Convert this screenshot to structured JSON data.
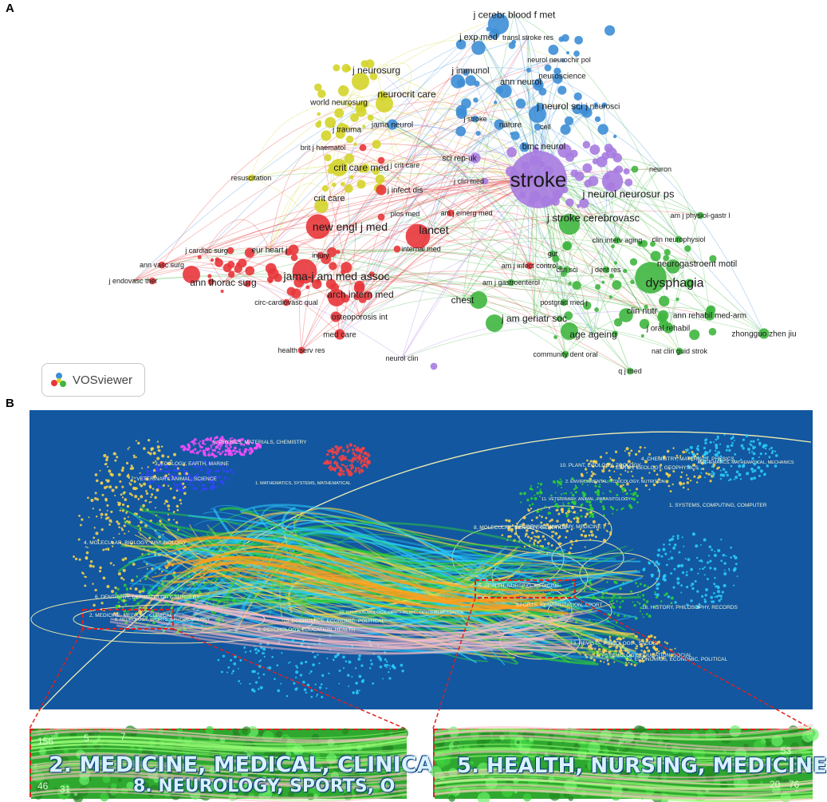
{
  "panel_labels": {
    "a": "A",
    "b": "B"
  },
  "logo": {
    "text": "VOSviewer",
    "icon": "vosviewer-logo-icon"
  },
  "colors": {
    "red": "#e8363a",
    "green": "#3fb63f",
    "blue": "#3d8ed6",
    "yellow": "#d4d42a",
    "purple": "#a77be0",
    "overlay_bg": "#1257a0",
    "zoom_bg": "#2a9a2a",
    "dash": "#e02020"
  },
  "network": {
    "nodes": [
      {
        "label": "stroke",
        "cluster": "purple",
        "size": 26
      },
      {
        "label": "j cerebr blood f met",
        "cluster": "blue",
        "size": 13
      },
      {
        "label": "j exp med",
        "cluster": "blue",
        "size": 11
      },
      {
        "label": "transl stroke res",
        "cluster": "blue",
        "size": 9
      },
      {
        "label": "neurol neurochir pol",
        "cluster": "blue",
        "size": 9
      },
      {
        "label": "j neurosurg",
        "cluster": "yellow",
        "size": 12
      },
      {
        "label": "j immunol",
        "cluster": "blue",
        "size": 11
      },
      {
        "label": "ann neurol",
        "cluster": "blue",
        "size": 11
      },
      {
        "label": "neuroscience",
        "cluster": "blue",
        "size": 10
      },
      {
        "label": "world neurosurg",
        "cluster": "yellow",
        "size": 10
      },
      {
        "label": "neurocrit care",
        "cluster": "yellow",
        "size": 12
      },
      {
        "label": "j neurol sci",
        "cluster": "blue",
        "size": 12
      },
      {
        "label": "j neurosci",
        "cluster": "blue",
        "size": 10
      },
      {
        "label": "j trauma",
        "cluster": "yellow",
        "size": 10
      },
      {
        "label": "jama neurol",
        "cluster": "blue",
        "size": 10
      },
      {
        "label": "j stroke",
        "cluster": "blue",
        "size": 9
      },
      {
        "label": "nature",
        "cluster": "blue",
        "size": 10
      },
      {
        "label": "cell",
        "cluster": "blue",
        "size": 9
      },
      {
        "label": "brit j haematol",
        "cluster": "red",
        "size": 9
      },
      {
        "label": "bmc neurol",
        "cluster": "purple",
        "size": 11
      },
      {
        "label": "sci rep-uk",
        "cluster": "purple",
        "size": 10
      },
      {
        "label": "crit care med",
        "cluster": "yellow",
        "size": 12
      },
      {
        "label": "j crit care",
        "cluster": "red",
        "size": 9
      },
      {
        "label": "neuron",
        "cluster": "green",
        "size": 9
      },
      {
        "label": "resuscitation",
        "cluster": "yellow",
        "size": 9
      },
      {
        "label": "j clin med",
        "cluster": "purple",
        "size": 9
      },
      {
        "label": "j infect dis",
        "cluster": "red",
        "size": 10
      },
      {
        "label": "j neurol neurosur ps",
        "cluster": "purple",
        "size": 13
      },
      {
        "label": "crit care",
        "cluster": "yellow",
        "size": 11
      },
      {
        "label": "plos med",
        "cluster": "red",
        "size": 9
      },
      {
        "label": "am j emerg med",
        "cluster": "red",
        "size": 9
      },
      {
        "label": "j stroke cerebrovasc",
        "cluster": "green",
        "size": 13
      },
      {
        "label": "am j physiol-gastr l",
        "cluster": "green",
        "size": 9
      },
      {
        "label": "new engl j med",
        "cluster": "red",
        "size": 14
      },
      {
        "label": "lancet",
        "cluster": "red",
        "size": 14
      },
      {
        "label": "clin interv aging",
        "cluster": "green",
        "size": 9
      },
      {
        "label": "clin neurophysiol",
        "cluster": "green",
        "size": 9
      },
      {
        "label": "j cardiac surg",
        "cluster": "red",
        "size": 9
      },
      {
        "label": "eur heart j",
        "cluster": "red",
        "size": 10
      },
      {
        "label": "injury",
        "cluster": "red",
        "size": 9
      },
      {
        "label": "internal med",
        "cluster": "red",
        "size": 9
      },
      {
        "label": "gut",
        "cluster": "green",
        "size": 9
      },
      {
        "label": "ann vasc surg",
        "cluster": "red",
        "size": 9
      },
      {
        "label": "am j infect control",
        "cluster": "red",
        "size": 9
      },
      {
        "label": "clin sci",
        "cluster": "green",
        "size": 9
      },
      {
        "label": "j dent res",
        "cluster": "green",
        "size": 9
      },
      {
        "label": "neurogastroent motil",
        "cluster": "green",
        "size": 11
      },
      {
        "label": "j endovasc ther",
        "cluster": "red",
        "size": 9
      },
      {
        "label": "ann thorac surg",
        "cluster": "red",
        "size": 12
      },
      {
        "label": "jama-j am med assoc",
        "cluster": "red",
        "size": 14
      },
      {
        "label": "am j gastroenterol",
        "cluster": "green",
        "size": 9
      },
      {
        "label": "dysphagia",
        "cluster": "green",
        "size": 16
      },
      {
        "label": "circ-cardiovasc qual",
        "cluster": "red",
        "size": 9
      },
      {
        "label": "arch intern med",
        "cluster": "red",
        "size": 12
      },
      {
        "label": "chest",
        "cluster": "green",
        "size": 12
      },
      {
        "label": "postgrad med j",
        "cluster": "green",
        "size": 9
      },
      {
        "label": "clin nutr",
        "cluster": "green",
        "size": 11
      },
      {
        "label": "ann rehabil med-arm",
        "cluster": "green",
        "size": 10
      },
      {
        "label": "j am geriatr soc",
        "cluster": "green",
        "size": 12
      },
      {
        "label": "osteoporosis int",
        "cluster": "red",
        "size": 10
      },
      {
        "label": "j oral rehabil",
        "cluster": "green",
        "size": 10
      },
      {
        "label": "zhongguo zhen jiu",
        "cluster": "green",
        "size": 10
      },
      {
        "label": "age ageing",
        "cluster": "green",
        "size": 12
      },
      {
        "label": "med care",
        "cluster": "red",
        "size": 10
      },
      {
        "label": "nat clin guid strok",
        "cluster": "green",
        "size": 9
      },
      {
        "label": "health serv res",
        "cluster": "red",
        "size": 9
      },
      {
        "label": "community dent oral",
        "cluster": "green",
        "size": 9
      },
      {
        "label": "neurol clin",
        "cluster": "purple",
        "size": 9
      },
      {
        "label": "q j med",
        "cluster": "green",
        "size": 9
      }
    ]
  },
  "overlay": {
    "left_labels": [
      {
        "text": "5. PHYSICS, MATERIALS, CHEMISTRY"
      },
      {
        "text": "3. ECOLOGY, EARTH, MARINE"
      },
      {
        "text": "7. VETERINARY, ANIMAL, SCIENCE"
      },
      {
        "text": "1. MATHEMATICS, SYSTEMS, MATHEMATICAL"
      },
      {
        "text": "4. MOLECULAR, BIOLOGY, IMMUNOLOGY"
      },
      {
        "text": "6. DENTISTRY, DERMATOLOGY, SURGERY"
      },
      {
        "text": "2. MEDICINE, MEDICAL, CLINICAL"
      },
      {
        "text": "8. NEUROLOGY, SPORTS, OPHTHALMOLOGY"
      },
      {
        "text": "10. ECONOMICS, ECONOMIC, POLITICAL"
      },
      {
        "text": "9. PSYCHOLOGY, EDUCATION, HEALTH"
      },
      {
        "text": "18. OPHTHALMOLOGY, OPHTHALMIC, OPHTHALMOLOGICA"
      }
    ],
    "right_labels": [
      {
        "text": "4. CHEMISTRY, MATERIALS, PHYSICS"
      },
      {
        "text": "10. PLANT, ECOLOGY, ZOOLOGY"
      },
      {
        "text": "EARTH, GEOLOGY, GEOPHYSICS"
      },
      {
        "text": "MATHEMATICS, MATHEMATICAL, MECHANICS"
      },
      {
        "text": "2. ENVIRONMENTAL, TOXICOLOGY, NUTRITION"
      },
      {
        "text": "11. VETERINARY, ANIMAL, PARASITOLOGY"
      },
      {
        "text": "1. SYSTEMS, COMPUTING, COMPUTER"
      },
      {
        "text": "8. MOLECULAR, BIOLOGY, GENETICS"
      },
      {
        "text": "FORENSIC, ANATOMY, MEDICINE"
      },
      {
        "text": "5. HEALTH, NURSING, MEDICINE"
      },
      {
        "text": "SPORTS, REHABILITATION, SPORT"
      },
      {
        "text": "16. HISTORY, PHILOSOPHY, RECORDS"
      },
      {
        "text": "13. REVISTA, PSICOLOGIA, SAUDE"
      },
      {
        "text": "7. PSYCHOLOGY, EDUCATION, SOCIAL"
      },
      {
        "text": "12. ECONOMICS, ECONOMIC, POLITICAL"
      }
    ]
  },
  "zooms": {
    "left": {
      "line1": "2. MEDICINE, MEDICAL, CLINICAL",
      "line2": "8. NEUROLOGY, SPORTS, O",
      "numbers": [
        "156",
        "46",
        "5",
        "7",
        "31"
      ]
    },
    "right": {
      "line1": "5. HEALTH, NURSING, MEDICINE",
      "numbers": [
        "20",
        "76",
        "53"
      ]
    }
  }
}
